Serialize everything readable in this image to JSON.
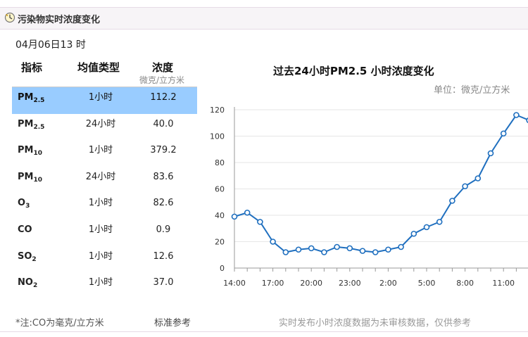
{
  "header": {
    "title": "污染物实时浓度变化",
    "icon": "clock-icon"
  },
  "timestamp": "04月06日13 时",
  "table": {
    "headers": {
      "indicator": "指标",
      "avg_type": "均值类型",
      "concentration": "浓度",
      "unit": "微克/立方米"
    },
    "rows": [
      {
        "ind": "PM",
        "sub": "2.5",
        "avg": "1小时",
        "val": "112.2"
      },
      {
        "ind": "PM",
        "sub": "2.5",
        "avg": "24小时",
        "val": "40.0"
      },
      {
        "ind": "PM",
        "sub": "10",
        "avg": "1小时",
        "val": "379.2"
      },
      {
        "ind": "PM",
        "sub": "10",
        "avg": "24小时",
        "val": "83.6"
      },
      {
        "ind": "O",
        "sub": "3",
        "avg": "1小时",
        "val": "82.6"
      },
      {
        "ind": "CO",
        "sub": "",
        "avg": "1小时",
        "val": "0.9"
      },
      {
        "ind": "SO",
        "sub": "2",
        "avg": "1小时",
        "val": "12.6"
      },
      {
        "ind": "NO",
        "sub": "2",
        "avg": "1小时",
        "val": "37.0"
      }
    ]
  },
  "footer": {
    "note": "*注:CO为毫克/立方米",
    "standard_link": "标准参考",
    "chart_note": "实时发布小时浓度数据为未审核数据，仅供参考"
  },
  "colors": {
    "line": "#1f6fbf",
    "highlight": "#99ccff",
    "header_bg": "#f7f4f7"
  },
  "chart_data": {
    "type": "line",
    "title": "过去24小时PM2.5 小时浓度变化",
    "unit_label": "单位：微克/立方米",
    "xlabel": "",
    "ylabel": "",
    "ylim": [
      0,
      120
    ],
    "y_ticks": [
      "0",
      "20",
      "40",
      "60",
      "80",
      "100",
      "120"
    ],
    "x_tick_labels": [
      "14:00",
      "17:00",
      "20:00",
      "23:00",
      "2:00",
      "5:00",
      "8:00",
      "11:00"
    ],
    "grid": true,
    "x": [
      "14:00",
      "15:00",
      "16:00",
      "17:00",
      "18:00",
      "19:00",
      "20:00",
      "21:00",
      "22:00",
      "23:00",
      "0:00",
      "1:00",
      "2:00",
      "3:00",
      "4:00",
      "5:00",
      "6:00",
      "7:00",
      "8:00",
      "9:00",
      "10:00",
      "11:00",
      "12:00",
      "13:00"
    ],
    "series": [
      {
        "values": [
          39,
          42,
          35,
          20,
          12,
          14,
          15,
          12,
          16,
          15,
          13,
          12,
          14,
          16,
          26,
          31,
          35,
          51,
          62,
          68,
          87,
          102,
          116,
          112
        ]
      }
    ]
  }
}
